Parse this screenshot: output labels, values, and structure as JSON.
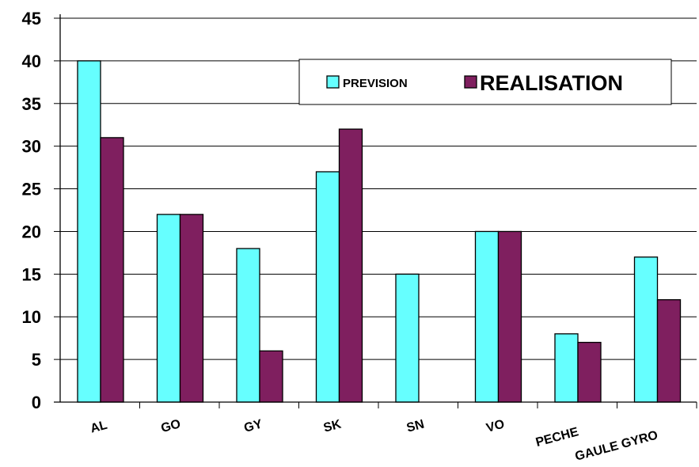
{
  "chart_data": {
    "type": "bar",
    "categories": [
      "AL",
      "GO",
      "GY",
      "SK",
      "SN",
      "VO",
      "PECHE",
      "GAULE GYRO"
    ],
    "series": [
      {
        "name": "PREVISION",
        "values": [
          40,
          22,
          18,
          27,
          15,
          20,
          8,
          17
        ],
        "color": "#66ffff"
      },
      {
        "name": "REALISATION",
        "values": [
          31,
          22,
          6,
          32,
          0,
          20,
          7,
          12
        ],
        "color": "#7f1f5f"
      }
    ],
    "title": "",
    "xlabel": "",
    "ylabel": "",
    "ylim": [
      0,
      45
    ],
    "yticks": [
      "0",
      "5",
      "10",
      "15",
      "20",
      "25",
      "30",
      "35",
      "40",
      "45"
    ],
    "grid": true,
    "legend_position": "top-right"
  }
}
